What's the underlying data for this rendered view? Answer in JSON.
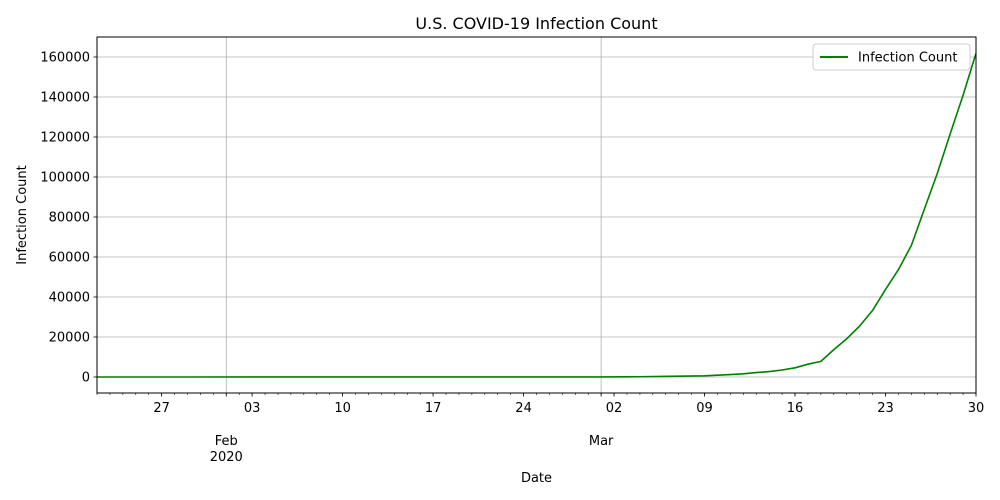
{
  "chart_data": {
    "type": "line",
    "title": "U.S. COVID-19 Infection Count",
    "xlabel": "Date",
    "ylabel": "Infection Count",
    "xlim": [
      "2020-01-22",
      "2020-03-30"
    ],
    "ylim": [
      -8000,
      170000
    ],
    "grid": true,
    "legend_position": "top-right",
    "yticks": [
      "0",
      "20000",
      "40000",
      "60000",
      "80000",
      "100000",
      "120000",
      "140000",
      "160000"
    ],
    "x_major_ticks": [
      {
        "date": "2020-01-27",
        "label": "27"
      },
      {
        "date": "2020-02-01",
        "label": "Feb\n2020"
      },
      {
        "date": "2020-02-03",
        "label": "03"
      },
      {
        "date": "2020-02-10",
        "label": "10"
      },
      {
        "date": "2020-02-17",
        "label": "17"
      },
      {
        "date": "2020-02-24",
        "label": "24"
      },
      {
        "date": "2020-03-01",
        "label": "Mar"
      },
      {
        "date": "2020-03-02",
        "label": "02"
      },
      {
        "date": "2020-03-09",
        "label": "09"
      },
      {
        "date": "2020-03-16",
        "label": "16"
      },
      {
        "date": "2020-03-23",
        "label": "23"
      },
      {
        "date": "2020-03-30",
        "label": "30"
      }
    ],
    "series": [
      {
        "name": "Infection Count",
        "color": "#008000",
        "x": [
          "2020-01-22",
          "2020-01-29",
          "2020-02-05",
          "2020-02-12",
          "2020-02-19",
          "2020-02-26",
          "2020-03-01",
          "2020-03-03",
          "2020-03-05",
          "2020-03-07",
          "2020-03-09",
          "2020-03-10",
          "2020-03-11",
          "2020-03-12",
          "2020-03-13",
          "2020-03-14",
          "2020-03-15",
          "2020-03-16",
          "2020-03-17",
          "2020-03-18",
          "2020-03-19",
          "2020-03-20",
          "2020-03-21",
          "2020-03-22",
          "2020-03-23",
          "2020-03-24",
          "2020-03-25",
          "2020-03-26",
          "2020-03-27",
          "2020-03-28",
          "2020-03-29",
          "2020-03-30"
        ],
        "y": [
          1,
          5,
          12,
          13,
          15,
          16,
          30,
          100,
          200,
          400,
          600,
          900,
          1200,
          1600,
          2200,
          2700,
          3500,
          4600,
          6400,
          7800,
          13700,
          19100,
          25500,
          33300,
          43800,
          53700,
          65800,
          83800,
          101700,
          121500,
          140900,
          161800
        ]
      }
    ]
  }
}
